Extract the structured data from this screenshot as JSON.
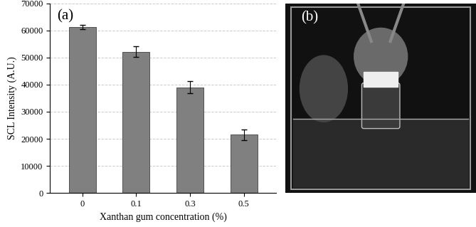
{
  "chart_data": {
    "type": "bar",
    "annotation": "(a)",
    "x_label": "Xanthan gum concentration (%)",
    "y_label": "SCL Intensity (A.U.)",
    "categories": [
      "0",
      "0.1",
      "0.3",
      "0.5"
    ],
    "values": [
      61300,
      52200,
      39000,
      21500
    ],
    "errors": [
      700,
      2000,
      2300,
      1900
    ],
    "color": "#808080",
    "ylim": [
      0,
      70000
    ],
    "yticks": [
      0,
      10000,
      20000,
      30000,
      40000,
      50000,
      60000,
      70000
    ],
    "grid": true
  },
  "image_panel": {
    "label": "(b)"
  }
}
